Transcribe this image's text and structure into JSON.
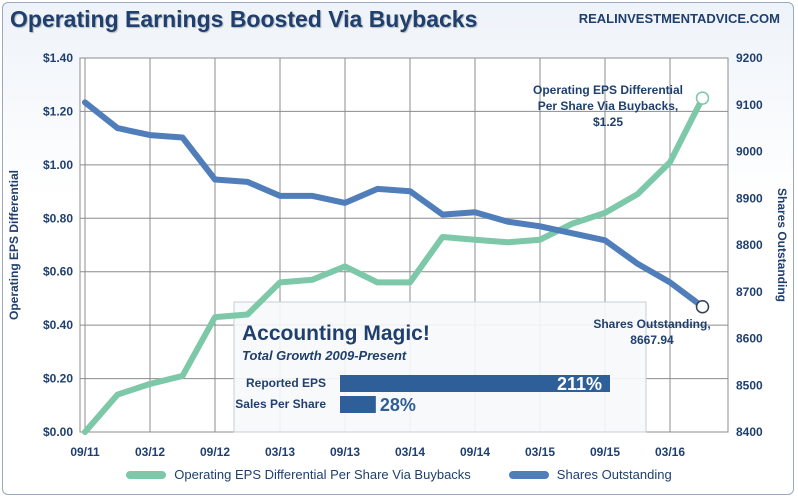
{
  "header": {
    "title": "Operating Earnings Boosted Via Buybacks",
    "source": "REALINVESTMENTADVICE.COM"
  },
  "colors": {
    "eps": "#7cc8a8",
    "shares": "#4f7ebb",
    "grid": "#8c8c8c",
    "text": "#1f3f6e",
    "bar": "#2f5f98"
  },
  "chart_data": {
    "type": "line",
    "x_labels": [
      "09/11",
      "03/12",
      "09/12",
      "03/13",
      "09/13",
      "03/14",
      "09/14",
      "03/15",
      "09/15",
      "03/16"
    ],
    "ylabel_left": "Operating EPS Differential",
    "ylabel_right": "Shares Outstanding",
    "ylim_left": [
      0,
      1.4
    ],
    "ylim_right": [
      8400,
      9200
    ],
    "left_ticks": [
      "$0.00",
      "$0.20",
      "$0.40",
      "$0.60",
      "$0.80",
      "$1.00",
      "$1.20",
      "$1.40"
    ],
    "right_ticks": [
      "8400",
      "8500",
      "8600",
      "8700",
      "8800",
      "8900",
      "9000",
      "9100",
      "9200"
    ],
    "grid": true,
    "legend_position": "bottom",
    "series": [
      {
        "name": "Operating EPS Differential Per Share Via Buybacks",
        "axis": "left",
        "x": [
          0,
          0.5,
          1,
          1.5,
          2,
          2.5,
          3,
          3.5,
          4,
          4.5,
          5,
          5.5,
          6,
          6.5,
          7,
          7.5,
          8,
          8.5,
          9,
          9.5
        ],
        "values": [
          0.0,
          0.14,
          0.18,
          0.21,
          0.43,
          0.44,
          0.56,
          0.57,
          0.62,
          0.56,
          0.56,
          0.73,
          0.72,
          0.71,
          0.72,
          0.78,
          0.82,
          0.89,
          1.01,
          1.25
        ]
      },
      {
        "name": "Shares Outstanding",
        "axis": "right",
        "x": [
          0,
          0.5,
          1,
          1.5,
          2,
          2.5,
          3,
          3.5,
          4,
          4.5,
          5,
          5.5,
          6,
          6.5,
          7,
          7.5,
          8,
          8.5,
          9,
          9.5
        ],
        "values": [
          9105,
          9050,
          9035,
          9030,
          8940,
          8935,
          8905,
          8905,
          8890,
          8920,
          8915,
          8865,
          8870,
          8850,
          8840,
          8825,
          8810,
          8760,
          8720,
          8667.94
        ]
      }
    ],
    "annotations": {
      "eps_label": [
        "Operating EPS Differential",
        "Per Share Via Buybacks,",
        "$1.25"
      ],
      "shares_label": [
        "Shares Outstanding,",
        "8667.94"
      ]
    },
    "inset": {
      "title": "Accounting  Magic!",
      "subtitle": "Total Growth 2009-Present",
      "bars": [
        {
          "label": "Reported EPS",
          "value": 211,
          "display": "211%"
        },
        {
          "label": "Sales Per Share",
          "value": 28,
          "display": "28%"
        }
      ]
    }
  },
  "legend": {
    "eps": "Operating EPS Differential Per Share Via Buybacks",
    "shares": "Shares Outstanding"
  }
}
